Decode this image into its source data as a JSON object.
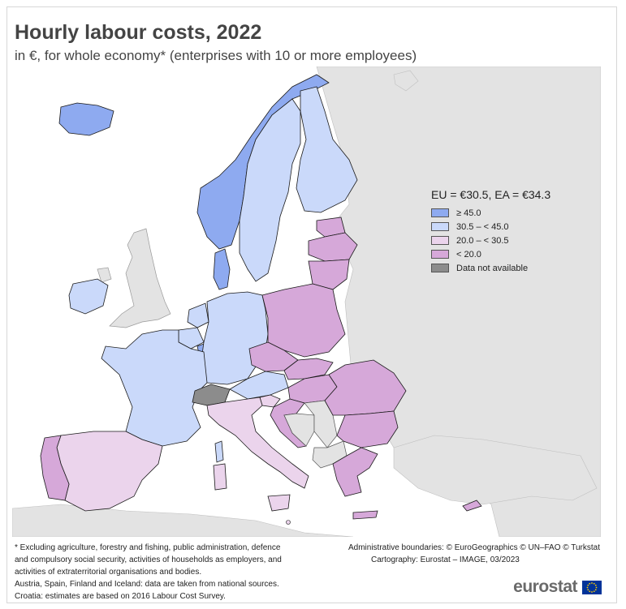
{
  "title": "Hourly labour costs, 2022",
  "subtitle": "in €, for whole economy* (enterprises with 10 or more employees)",
  "legend": {
    "headline": "EU = €30.5, EA = €34.3",
    "items": [
      {
        "label": "≥ 45.0",
        "color": "#8eaaf0"
      },
      {
        "label": "30.5 – < 45.0",
        "color": "#cad9fa"
      },
      {
        "label": "20.0 – < 30.5",
        "color": "#ebd4ec"
      },
      {
        "label": "< 20.0",
        "color": "#d6a8d9"
      },
      {
        "label": "Data not available",
        "color": "#8c8c8c"
      }
    ]
  },
  "colors": {
    "sea": "#ffffff",
    "non_eu_land": "#e3e3e3",
    "border": "#1a1a1a"
  },
  "notes": [
    "* Excluding agriculture, forestry and fishing, public administration, defence",
    "and compulsory social security, activities of households as employers, and",
    "activities of extraterritorial organisations and bodies.",
    "Austria, Spain, Finland and Iceland: data are taken from national sources.",
    "Croatia: estimates are based on 2016 Labour Cost Survey."
  ],
  "credits": [
    "Administrative boundaries: © EuroGeographics © UN–FAO © Turkstat",
    "Cartography: Eurostat – IMAGE, 03/2023"
  ],
  "logo_text": "eurostat"
}
